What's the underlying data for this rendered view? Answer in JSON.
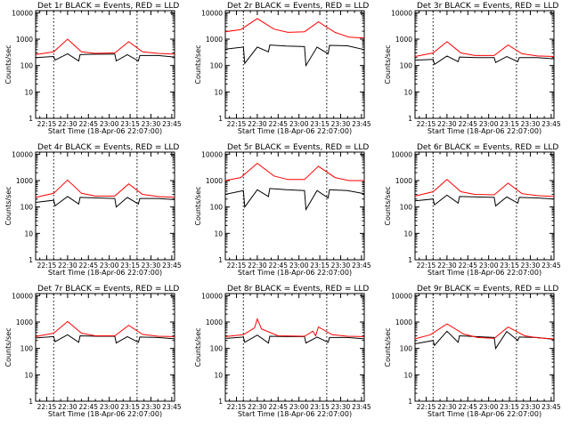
{
  "colors": {
    "events": "#000000",
    "lld": "#ff0000",
    "background": "#ffffff"
  },
  "chart_data": [
    {
      "type": "line",
      "title": "Det 1r BLACK = Events, RED = LLD",
      "xlabel": "Start Time (18-Apr-06 22:07:00)",
      "ylabel": "Counts/sec",
      "log_y": true,
      "ylim": [
        1,
        12000
      ],
      "xlim": [
        "22:07",
        "23:47"
      ],
      "x_ticks": [
        "22:15",
        "22:30",
        "22:45",
        "23:00",
        "23:15",
        "23:30",
        "23:45"
      ],
      "y_ticks": [
        "1",
        "10",
        "100",
        "1000",
        "10000"
      ],
      "vlines": [
        "22:20",
        "23:20"
      ],
      "series": [
        {
          "name": "Events",
          "x": [
            "22:07",
            "22:20",
            "22:21",
            "22:30",
            "22:38",
            "22:39",
            "22:51",
            "23:04",
            "23:05",
            "23:13",
            "23:21",
            "23:22",
            "23:35",
            "23:47"
          ],
          "values": [
            200,
            220,
            160,
            280,
            150,
            260,
            270,
            270,
            150,
            260,
            150,
            240,
            240,
            210
          ]
        },
        {
          "name": "LLD",
          "x": [
            "22:07",
            "22:20",
            "22:30",
            "22:40",
            "22:50",
            "23:04",
            "23:14",
            "23:24",
            "23:35",
            "23:47"
          ],
          "values": [
            260,
            330,
            1000,
            330,
            290,
            300,
            800,
            330,
            290,
            270
          ]
        }
      ]
    },
    {
      "type": "line",
      "title": "Det 2r BLACK = Events, RED = LLD",
      "xlabel": "Start Time (18-Apr-06 22:07:00)",
      "ylabel": "Counts/sec",
      "log_y": true,
      "ylim": [
        1,
        12000
      ],
      "xlim": [
        "22:07",
        "23:47"
      ],
      "x_ticks": [
        "22:15",
        "22:30",
        "22:45",
        "23:00",
        "23:15",
        "23:30",
        "23:45"
      ],
      "y_ticks": [
        "1",
        "10",
        "100",
        "1000",
        "10000"
      ],
      "vlines": [
        "22:20",
        "23:20"
      ],
      "series": [
        {
          "name": "Events",
          "x": [
            "22:07",
            "22:20",
            "22:21",
            "22:30",
            "22:38",
            "22:39",
            "22:51",
            "23:04",
            "23:05",
            "23:13",
            "23:21",
            "23:22",
            "23:35",
            "23:47"
          ],
          "values": [
            420,
            500,
            120,
            500,
            330,
            600,
            550,
            520,
            100,
            500,
            280,
            580,
            560,
            400
          ]
        },
        {
          "name": "LLD",
          "x": [
            "22:07",
            "22:18",
            "22:30",
            "22:42",
            "22:52",
            "23:04",
            "23:14",
            "23:26",
            "23:36",
            "23:47"
          ],
          "values": [
            1900,
            2300,
            6000,
            2400,
            1800,
            1900,
            4500,
            1800,
            1200,
            1100
          ]
        }
      ]
    },
    {
      "type": "line",
      "title": "Det 3r BLACK = Events, RED = LLD",
      "xlabel": "Start Time (18-Apr-06 22:07:00)",
      "ylabel": "Counts/sec",
      "log_y": true,
      "ylim": [
        1,
        12000
      ],
      "xlim": [
        "22:07",
        "23:47"
      ],
      "x_ticks": [
        "22:15",
        "22:30",
        "22:45",
        "23:00",
        "23:15",
        "23:30",
        "23:45"
      ],
      "y_ticks": [
        "1",
        "10",
        "100",
        "1000",
        "10000"
      ],
      "vlines": [
        "22:20",
        "23:20"
      ],
      "series": [
        {
          "name": "Events",
          "x": [
            "22:07",
            "22:20",
            "22:21",
            "22:30",
            "22:38",
            "22:39",
            "22:51",
            "23:04",
            "23:05",
            "23:13",
            "23:21",
            "23:22",
            "23:35",
            "23:47"
          ],
          "values": [
            160,
            170,
            110,
            230,
            140,
            210,
            200,
            200,
            130,
            220,
            140,
            200,
            200,
            180
          ]
        },
        {
          "name": "LLD",
          "x": [
            "22:07",
            "22:20",
            "22:30",
            "22:40",
            "22:50",
            "23:04",
            "23:14",
            "23:24",
            "23:35",
            "23:47"
          ],
          "values": [
            220,
            300,
            800,
            300,
            240,
            240,
            600,
            280,
            230,
            220
          ]
        }
      ]
    },
    {
      "type": "line",
      "title": "Det 4r BLACK = Events, RED = LLD",
      "xlabel": "Start Time (18-Apr-06 22:07:00)",
      "ylabel": "Counts/sec",
      "log_y": true,
      "ylim": [
        1,
        12000
      ],
      "xlim": [
        "22:07",
        "23:47"
      ],
      "x_ticks": [
        "22:15",
        "22:30",
        "22:45",
        "23:00",
        "23:15",
        "23:30",
        "23:45"
      ],
      "y_ticks": [
        "1",
        "10",
        "100",
        "1000",
        "10000"
      ],
      "vlines": [
        "22:20",
        "23:20"
      ],
      "series": [
        {
          "name": "Events",
          "x": [
            "22:07",
            "22:20",
            "22:21",
            "22:30",
            "22:38",
            "22:39",
            "22:51",
            "23:04",
            "23:05",
            "23:13",
            "23:21",
            "23:22",
            "23:35",
            "23:47"
          ],
          "values": [
            150,
            180,
            110,
            250,
            130,
            230,
            220,
            210,
            100,
            230,
            130,
            210,
            210,
            190
          ]
        },
        {
          "name": "LLD",
          "x": [
            "22:07",
            "22:20",
            "22:30",
            "22:40",
            "22:50",
            "23:04",
            "23:14",
            "23:24",
            "23:35",
            "23:47"
          ],
          "values": [
            230,
            330,
            1050,
            330,
            260,
            260,
            750,
            300,
            250,
            230
          ]
        }
      ]
    },
    {
      "type": "line",
      "title": "Det 5r BLACK = Events, RED = LLD",
      "xlabel": "Start Time (18-Apr-06 22:07:00)",
      "ylabel": "Counts/sec",
      "log_y": true,
      "ylim": [
        1,
        12000
      ],
      "xlim": [
        "22:07",
        "23:47"
      ],
      "x_ticks": [
        "22:15",
        "22:30",
        "22:45",
        "23:00",
        "23:15",
        "23:30",
        "23:45"
      ],
      "y_ticks": [
        "1",
        "10",
        "100",
        "1000",
        "10000"
      ],
      "vlines": [
        "22:20",
        "23:20"
      ],
      "series": [
        {
          "name": "Events",
          "x": [
            "22:07",
            "22:20",
            "22:21",
            "22:30",
            "22:38",
            "22:39",
            "22:51",
            "23:04",
            "23:05",
            "23:13",
            "23:21",
            "23:22",
            "23:35",
            "23:47"
          ],
          "values": [
            300,
            420,
            100,
            450,
            250,
            500,
            450,
            420,
            80,
            420,
            220,
            450,
            420,
            320
          ]
        },
        {
          "name": "LLD",
          "x": [
            "22:07",
            "22:18",
            "22:30",
            "22:42",
            "22:52",
            "23:04",
            "23:14",
            "23:26",
            "23:36",
            "23:47"
          ],
          "values": [
            1000,
            1300,
            4500,
            1500,
            1100,
            1100,
            3500,
            1300,
            1000,
            1000
          ]
        }
      ]
    },
    {
      "type": "line",
      "title": "Det 6r BLACK = Events, RED = LLD",
      "xlabel": "Start Time (18-Apr-06 22:07:00)",
      "ylabel": "Counts/sec",
      "log_y": true,
      "ylim": [
        1,
        12000
      ],
      "xlim": [
        "22:07",
        "23:47"
      ],
      "x_ticks": [
        "22:15",
        "22:30",
        "22:45",
        "23:00",
        "23:15",
        "23:30",
        "23:45"
      ],
      "y_ticks": [
        "1",
        "10",
        "100",
        "1000",
        "10000"
      ],
      "vlines": [
        "22:20",
        "23:20"
      ],
      "series": [
        {
          "name": "Events",
          "x": [
            "22:07",
            "22:20",
            "22:21",
            "22:30",
            "22:38",
            "22:39",
            "22:51",
            "23:04",
            "23:05",
            "23:13",
            "23:21",
            "23:22",
            "23:35",
            "23:47"
          ],
          "values": [
            170,
            200,
            120,
            280,
            140,
            250,
            240,
            230,
            110,
            240,
            140,
            230,
            220,
            200
          ]
        },
        {
          "name": "LLD",
          "x": [
            "22:07",
            "22:20",
            "22:30",
            "22:40",
            "22:50",
            "23:04",
            "23:14",
            "23:24",
            "23:35",
            "23:47"
          ],
          "values": [
            260,
            380,
            1100,
            380,
            300,
            290,
            800,
            320,
            270,
            250
          ]
        }
      ]
    },
    {
      "type": "line",
      "title": "Det 7r BLACK = Events, RED = LLD",
      "xlabel": "Start Time (18-Apr-06 22:07:00)",
      "ylabel": "Counts/sec",
      "log_y": true,
      "ylim": [
        1,
        12000
      ],
      "xlim": [
        "22:07",
        "23:47"
      ],
      "x_ticks": [
        "22:15",
        "22:30",
        "22:45",
        "23:00",
        "23:15",
        "23:30",
        "23:45"
      ],
      "y_ticks": [
        "1",
        "10",
        "100",
        "1000",
        "10000"
      ],
      "vlines": [
        "22:20",
        "23:20"
      ],
      "series": [
        {
          "name": "Events",
          "x": [
            "22:07",
            "22:20",
            "22:21",
            "22:30",
            "22:38",
            "22:39",
            "22:51",
            "23:04",
            "23:05",
            "23:13",
            "23:21",
            "23:22",
            "23:35",
            "23:47"
          ],
          "values": [
            250,
            280,
            180,
            330,
            170,
            300,
            290,
            290,
            160,
            280,
            170,
            270,
            260,
            230
          ]
        },
        {
          "name": "LLD",
          "x": [
            "22:07",
            "22:20",
            "22:30",
            "22:40",
            "22:50",
            "23:04",
            "23:14",
            "23:24",
            "23:35",
            "23:47"
          ],
          "values": [
            280,
            380,
            1050,
            380,
            300,
            300,
            750,
            340,
            290,
            280
          ]
        }
      ]
    },
    {
      "type": "line",
      "title": "Det 8r BLACK = Events, RED = LLD",
      "xlabel": "Start Time (18-Apr-06 22:07:00)",
      "ylabel": "Counts/sec",
      "log_y": true,
      "ylim": [
        1,
        12000
      ],
      "xlim": [
        "22:07",
        "23:47"
      ],
      "x_ticks": [
        "22:15",
        "22:30",
        "22:45",
        "23:00",
        "23:15",
        "23:30",
        "23:45"
      ],
      "y_ticks": [
        "1",
        "10",
        "100",
        "1000",
        "10000"
      ],
      "vlines": [
        "22:20",
        "23:20"
      ],
      "series": [
        {
          "name": "Events",
          "x": [
            "22:07",
            "22:20",
            "22:21",
            "22:30",
            "22:38",
            "22:39",
            "22:51",
            "23:04",
            "23:05",
            "23:13",
            "23:21",
            "23:22",
            "23:35",
            "23:47"
          ],
          "values": [
            240,
            270,
            170,
            320,
            160,
            290,
            280,
            280,
            160,
            270,
            170,
            260,
            260,
            230
          ]
        },
        {
          "name": "LLD",
          "x": [
            "22:07",
            "22:20",
            "22:28",
            "22:30",
            "22:33",
            "22:45",
            "23:04",
            "23:10",
            "23:12",
            "23:14",
            "23:24",
            "23:35",
            "23:47"
          ],
          "values": [
            280,
            330,
            600,
            1300,
            550,
            300,
            290,
            450,
            300,
            650,
            330,
            290,
            280
          ]
        }
      ]
    },
    {
      "type": "line",
      "title": "Det 9r BLACK = Events, RED = LLD",
      "xlabel": "Start Time (18-Apr-06 22:07:00)",
      "ylabel": "Counts/sec",
      "log_y": true,
      "ylim": [
        1,
        12000
      ],
      "xlim": [
        "22:07",
        "23:47"
      ],
      "x_ticks": [
        "22:15",
        "22:30",
        "22:45",
        "23:00",
        "23:15",
        "23:30",
        "23:45"
      ],
      "y_ticks": [
        "1",
        "10",
        "100",
        "1000",
        "10000"
      ],
      "vlines": [
        "22:20",
        "23:20"
      ],
      "series": [
        {
          "name": "Events",
          "x": [
            "22:07",
            "22:20",
            "22:21",
            "22:30",
            "22:38",
            "22:39",
            "22:51",
            "23:04",
            "23:05",
            "23:13",
            "23:21",
            "23:22",
            "23:35",
            "23:47"
          ],
          "values": [
            150,
            200,
            130,
            450,
            170,
            300,
            280,
            260,
            100,
            440,
            200,
            270,
            260,
            220
          ]
        },
        {
          "name": "LLD",
          "x": [
            "22:07",
            "22:18",
            "22:30",
            "22:42",
            "22:52",
            "23:04",
            "23:14",
            "23:26",
            "23:36",
            "23:47"
          ],
          "values": [
            230,
            330,
            850,
            350,
            260,
            240,
            650,
            300,
            250,
            230
          ]
        }
      ]
    }
  ]
}
